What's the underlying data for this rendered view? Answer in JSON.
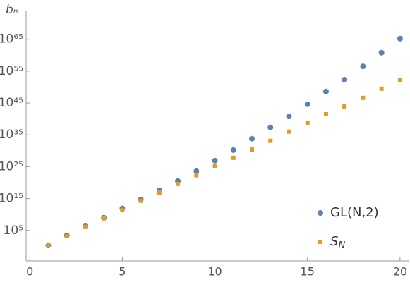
{
  "chart_data": {
    "type": "scatter",
    "y_label": "bₙ",
    "log_y": true,
    "x": [
      1,
      2,
      3,
      4,
      5,
      6,
      7,
      8,
      9,
      10,
      11,
      12,
      13,
      14,
      15,
      16,
      17,
      18,
      19,
      20
    ],
    "series": [
      {
        "name": "GL(N,2)",
        "color": "#5e81b5",
        "marker": "circle",
        "values": [
          2,
          3000.0,
          2000000.0,
          1000000000.0,
          800000000000.0,
          500000000000000.0,
          4e+17,
          3e+20,
          4e+23,
          8e+26,
          1.6e+30,
          6e+33,
          2e+37,
          6e+40,
          4e+44,
          4e+48,
          2e+52,
          3e+56,
          6e+60,
          1.6e+65
        ]
      },
      {
        "name": "SN",
        "color": "#e19c24",
        "marker": "square",
        "values": [
          2,
          1600.0,
          1300000.0,
          600000000.0,
          250000000000.0,
          200000000000000.0,
          8e+16,
          4e+19,
          2e+22,
          1.6e+25,
          6e+27,
          2.5e+30,
          1.3e+33,
          1e+36,
          4e+38,
          3e+41,
          8e+43,
          4e+46,
          3e+49,
          1.3e+52
        ]
      }
    ],
    "xlim": [
      -0.2,
      20.5
    ],
    "xticks": [
      0,
      5,
      10,
      15,
      20
    ],
    "ylim": [
      1e-05,
      1e+74
    ],
    "yticks": [
      {
        "value": 100000.0,
        "label": "10⁵"
      },
      {
        "value": 1000000000000000.0,
        "label": "10¹⁵"
      },
      {
        "value": 1e+25,
        "label": "10²⁵"
      },
      {
        "value": 1e+35,
        "label": "10³⁵"
      },
      {
        "value": 1e+45,
        "label": "10⁴⁵"
      },
      {
        "value": 1e+55,
        "label": "10⁵⁵"
      },
      {
        "value": 1e+65,
        "label": "10⁶⁵"
      }
    ],
    "legend": "bottom-right"
  }
}
